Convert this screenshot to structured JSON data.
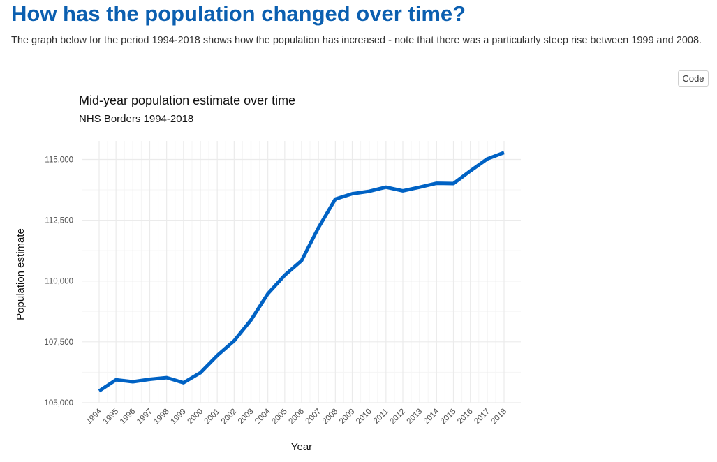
{
  "page": {
    "title": "How has the population changed over time?",
    "intro": "The graph below for the period 1994-2018 shows how the population has increased - note that there was a particularly steep rise between 1999 and 2008.",
    "code_button_label": "Code"
  },
  "colors": {
    "title": "#0b5fb0",
    "line": "#0062c4",
    "grid_major": "#ebebeb",
    "grid_minor": "#f5f5f5"
  },
  "chart_data": {
    "type": "line",
    "title": "Mid-year population estimate over time",
    "subtitle": "NHS Borders 1994-2018",
    "xlabel": "Year",
    "ylabel": "Population estimate",
    "ylim": [
      105000,
      115000
    ],
    "y_ticks": [
      105000,
      107500,
      110000,
      112500,
      115000
    ],
    "y_tick_labels": [
      "105,000",
      "107,500",
      "110,000",
      "112,500",
      "115,000"
    ],
    "x": [
      1994,
      1995,
      1996,
      1997,
      1998,
      1999,
      2000,
      2001,
      2002,
      2003,
      2004,
      2005,
      2006,
      2007,
      2008,
      2009,
      2010,
      2011,
      2012,
      2013,
      2014,
      2015,
      2016,
      2017,
      2018
    ],
    "x_tick_labels": [
      "1994",
      "1995",
      "1996",
      "1997",
      "1998",
      "1999",
      "2000",
      "2001",
      "2002",
      "2003",
      "2004",
      "2005",
      "2006",
      "2007",
      "2008",
      "2009",
      "2010",
      "2011",
      "2012",
      "2013",
      "2014",
      "2015",
      "2016",
      "2017",
      "2018"
    ],
    "series": [
      {
        "values": [
          105480,
          105940,
          105860,
          105960,
          106030,
          105820,
          106230,
          106940,
          107540,
          108400,
          109480,
          110240,
          110840,
          112200,
          113370,
          113590,
          113690,
          113860,
          113710,
          113860,
          114020,
          114010,
          114530,
          115020,
          115280
        ]
      }
    ],
    "grid": true,
    "legend": "none"
  }
}
